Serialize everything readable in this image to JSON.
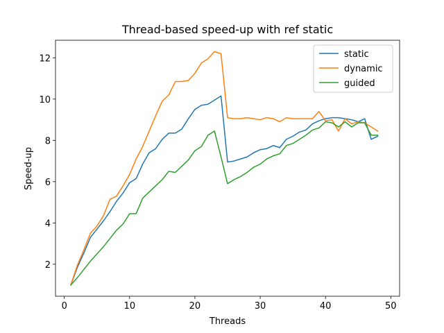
{
  "chart_data": {
    "type": "line",
    "title": "Thread-based speed-up with ref static",
    "xlabel": "Threads",
    "ylabel": "Speed-up",
    "xlim": [
      -1.35,
      51.35
    ],
    "ylim": [
      0.45,
      12.85
    ],
    "xticks": [
      0,
      10,
      20,
      30,
      40,
      50
    ],
    "yticks": [
      2,
      4,
      6,
      8,
      10,
      12
    ],
    "grid": false,
    "legend_position": "upper right",
    "x": [
      1,
      2,
      3,
      4,
      5,
      6,
      7,
      8,
      9,
      10,
      11,
      12,
      13,
      14,
      15,
      16,
      17,
      18,
      19,
      20,
      21,
      22,
      23,
      24,
      25,
      26,
      27,
      28,
      29,
      30,
      31,
      32,
      33,
      34,
      35,
      36,
      37,
      38,
      39,
      40,
      41,
      42,
      43,
      44,
      45,
      46,
      47,
      48
    ],
    "series": [
      {
        "name": "static",
        "color": "#1f77b4",
        "values": [
          1.0,
          1.85,
          2.55,
          3.3,
          3.7,
          4.1,
          4.55,
          5.05,
          5.45,
          5.95,
          6.15,
          6.85,
          7.4,
          7.6,
          8.05,
          8.35,
          8.35,
          8.55,
          9.05,
          9.5,
          9.7,
          9.75,
          9.95,
          10.15,
          6.95,
          7.0,
          7.1,
          7.2,
          7.4,
          7.55,
          7.6,
          7.75,
          7.65,
          8.05,
          8.2,
          8.4,
          8.5,
          8.8,
          8.95,
          9.05,
          9.1,
          9.1,
          9.05,
          9.0,
          8.9,
          9.05,
          8.05,
          8.2
        ]
      },
      {
        "name": "dynamic",
        "color": "#ff7f0e",
        "values": [
          1.0,
          1.95,
          2.7,
          3.5,
          3.85,
          4.35,
          5.15,
          5.3,
          5.8,
          6.35,
          7.1,
          7.7,
          8.45,
          9.2,
          9.9,
          10.2,
          10.85,
          10.85,
          10.9,
          11.25,
          11.75,
          11.95,
          12.3,
          12.2,
          9.1,
          9.05,
          9.05,
          9.1,
          9.05,
          9.0,
          9.1,
          9.05,
          8.9,
          9.1,
          9.05,
          9.05,
          9.05,
          9.05,
          9.4,
          8.95,
          9.0,
          8.45,
          9.05,
          8.8,
          8.9,
          8.85,
          8.65,
          8.45
        ]
      },
      {
        "name": "guided",
        "color": "#2ca02c",
        "values": [
          1.0,
          1.35,
          1.75,
          2.15,
          2.5,
          2.85,
          3.25,
          3.65,
          3.95,
          4.45,
          4.45,
          5.2,
          5.5,
          5.8,
          6.1,
          6.5,
          6.45,
          6.75,
          7.05,
          7.5,
          7.7,
          8.25,
          8.45,
          7.2,
          5.9,
          6.1,
          6.25,
          6.45,
          6.7,
          6.85,
          7.1,
          7.25,
          7.35,
          7.75,
          7.85,
          8.05,
          8.25,
          8.5,
          8.6,
          8.9,
          8.85,
          8.65,
          8.9,
          8.65,
          8.85,
          8.85,
          8.25,
          8.25
        ]
      }
    ]
  }
}
